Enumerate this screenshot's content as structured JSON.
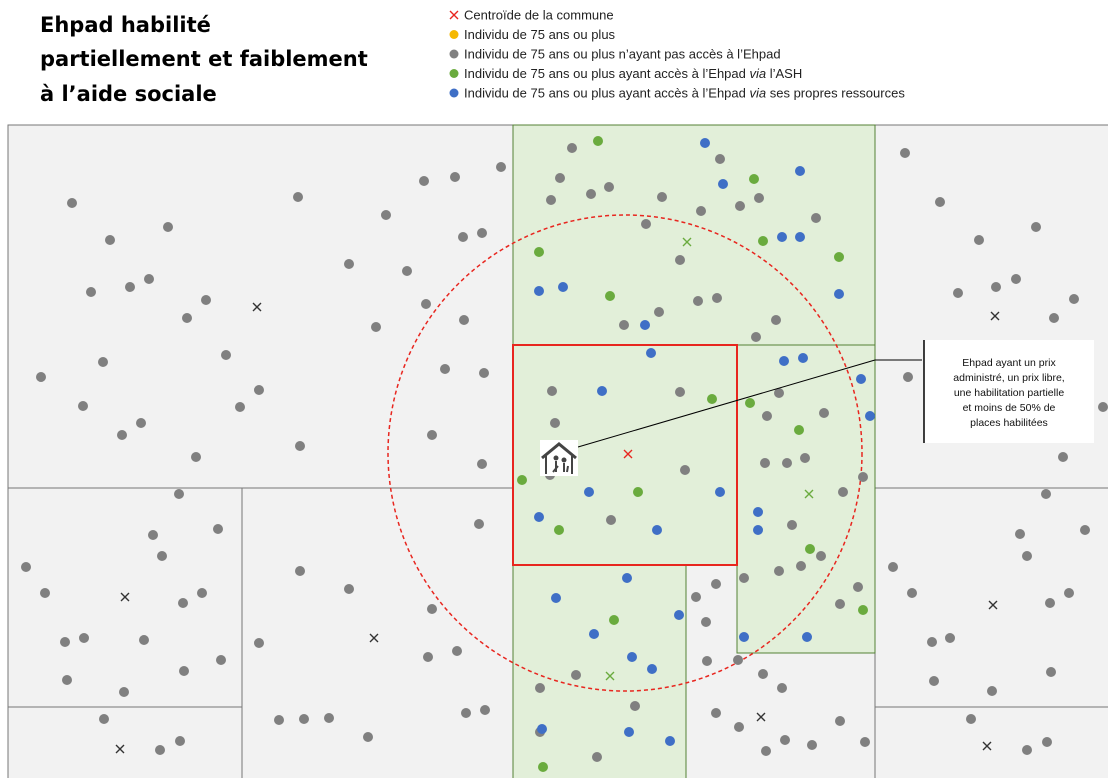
{
  "header": {
    "title": [
      "Ehpad habilité",
      "partiellement et faiblement",
      "à l’aide sociale"
    ]
  },
  "legend": [
    {
      "symbol": "cross",
      "color": "#e8261f",
      "parts": [
        "Centroïde de la commune"
      ]
    },
    {
      "symbol": "dot",
      "color": "#f5b800",
      "parts": [
        "Individu de 75 ans ou plus"
      ]
    },
    {
      "symbol": "dot",
      "color": "#808080",
      "parts": [
        "Individu de 75 ans ou plus n’ayant pas accès à l’Ehpad"
      ]
    },
    {
      "symbol": "dot",
      "color": "#6aab3e",
      "parts": [
        "Individu de 75 ans ou plus ayant accès à l’Ehpad ",
        "via",
        " l’ASH"
      ]
    },
    {
      "symbol": "dot",
      "color": "#3f6fc6",
      "parts": [
        "Individu de 75 ans ou plus ayant accès à l’Ehpad ",
        "via",
        " ses propres ressources"
      ]
    }
  ],
  "callout": {
    "lines": [
      "Ehpad ayant un prix",
      "administré, un prix libre,",
      "une habilitation partielle",
      "et moins de 50% de",
      "places habilitées"
    ]
  }
}
